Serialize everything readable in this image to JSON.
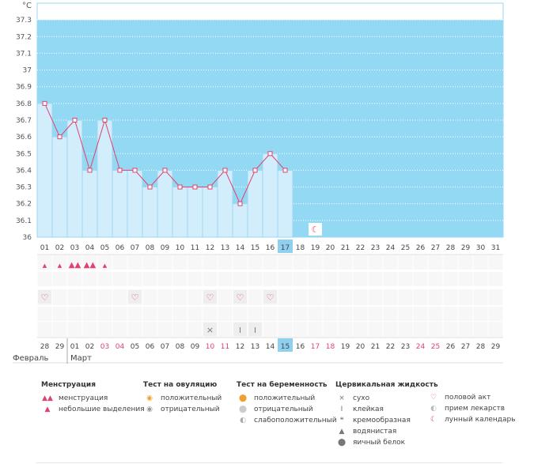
{
  "chart_data": {
    "type": "line",
    "ylabel": "°C",
    "ylim": [
      36,
      37.4
    ],
    "yticks": [
      "36",
      "36.1",
      "36.2",
      "36.3",
      "36.4",
      "36.5",
      "36.6",
      "36.7",
      "36.8",
      "36.9",
      "37",
      "37.1",
      "37.2",
      "37.3"
    ],
    "cycle_days": [
      "01",
      "02",
      "03",
      "04",
      "05",
      "06",
      "07",
      "08",
      "09",
      "10",
      "11",
      "12",
      "13",
      "14",
      "15",
      "16",
      "17",
      "18",
      "19",
      "20",
      "21",
      "22",
      "23",
      "24",
      "25",
      "26",
      "27",
      "28",
      "29",
      "30",
      "31"
    ],
    "temperatures": [
      36.8,
      36.6,
      36.7,
      36.4,
      36.7,
      36.4,
      36.4,
      36.3,
      36.4,
      36.3,
      36.3,
      36.3,
      36.4,
      36.2,
      36.4,
      36.5,
      36.4
    ],
    "current_cycle_day": "17",
    "moon_cycle_day": "19",
    "menstruation_row": [
      "small",
      "small",
      "heavy",
      "heavy",
      "small"
    ],
    "sex_days": [
      "01",
      "07",
      "12",
      "14",
      "16"
    ],
    "cervical_sticky_days": [
      "14",
      "15"
    ],
    "cervical_dry_days": [
      "12"
    ],
    "calendar_dates": [
      "28",
      "29",
      "01",
      "02",
      "03",
      "04",
      "05",
      "06",
      "07",
      "08",
      "09",
      "10",
      "11",
      "12",
      "13",
      "14",
      "15",
      "16",
      "17",
      "18",
      "19",
      "20",
      "21",
      "22",
      "23",
      "24",
      "25",
      "26",
      "27",
      "28",
      "29"
    ],
    "weekend_dates_idx": [
      4,
      5,
      11,
      12,
      18,
      19,
      25,
      26
    ],
    "today_date_idx": 16,
    "months": [
      {
        "name": "Февраль",
        "start_idx": 0
      },
      {
        "name": "Март",
        "start_idx": 2
      }
    ],
    "colors": {
      "band": "#94d9f4",
      "bar": "#d2eefc",
      "bar_border": "#9cd6f2",
      "line": "#e0416e",
      "today": "#8fd0ef",
      "weekend": "#e0416e"
    }
  },
  "legend": {
    "menstruation": {
      "title": "Менструация",
      "items": [
        "менструация",
        "небольшие выделения"
      ]
    },
    "ovulation": {
      "title": "Тест на овуляцию",
      "items": [
        "положительный",
        "отрицательный"
      ]
    },
    "pregnancy": {
      "title": "Тест на беременность",
      "items": [
        "положительный",
        "отрицательный",
        "слабоположительный"
      ]
    },
    "cervical": {
      "title": "Цервикальная жидкость",
      "items": [
        "сухо",
        "клейкая",
        "кремообразная",
        "водянистая",
        "яичный белок"
      ]
    },
    "other": {
      "items": [
        "половой акт",
        "прием лекарств",
        "лунный календарь"
      ]
    }
  }
}
